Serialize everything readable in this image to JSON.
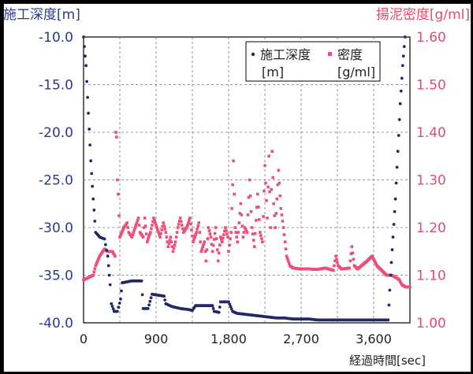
{
  "chart_data": {
    "type": "scatter",
    "left_axis": {
      "label": "施工深度[m]",
      "ticks": [
        "-10.0",
        "-15.0",
        "-20.0",
        "-25.0",
        "-30.0",
        "-35.0",
        "-40.0"
      ],
      "ylim": [
        -40.0,
        -10.0
      ],
      "color": "#2b3a8c"
    },
    "right_axis": {
      "label": "揚泥密度[g/ml]",
      "ticks": [
        "1.60",
        "1.50",
        "1.40",
        "1.30",
        "1.20",
        "1.10",
        "1.00"
      ],
      "ylim": [
        1.0,
        1.6
      ],
      "color": "#e34b6d"
    },
    "x_axis": {
      "label": "経過時間[sec]",
      "ticks": [
        "0",
        "900",
        "1,800",
        "2,700",
        "3,600"
      ],
      "tick_values": [
        0,
        900,
        1800,
        2700,
        3600
      ],
      "xlim": [
        0,
        4050
      ]
    },
    "grid": true,
    "legend_position": "top-right",
    "series": [
      {
        "name": "施工深度",
        "unit": "[m]",
        "axis": "left",
        "color": "#1f2a66",
        "points": [
          [
            0,
            -10
          ],
          [
            30,
            -13
          ],
          [
            60,
            -18
          ],
          [
            90,
            -23
          ],
          [
            120,
            -27
          ],
          [
            150,
            -30.5
          ],
          [
            200,
            -31
          ],
          [
            260,
            -31.2
          ],
          [
            300,
            -33
          ],
          [
            330,
            -36
          ],
          [
            345,
            -38
          ],
          [
            380,
            -38.8
          ],
          [
            420,
            -38.8
          ],
          [
            460,
            -37.5
          ],
          [
            480,
            -35.8
          ],
          [
            600,
            -35.6
          ],
          [
            720,
            -35.6
          ],
          [
            740,
            -38.5
          ],
          [
            800,
            -38.5
          ],
          [
            850,
            -37
          ],
          [
            1000,
            -37.2
          ],
          [
            1020,
            -38
          ],
          [
            1100,
            -38.3
          ],
          [
            1200,
            -38.5
          ],
          [
            1300,
            -38.6
          ],
          [
            1350,
            -38.7
          ],
          [
            1390,
            -38.2
          ],
          [
            1600,
            -38.2
          ],
          [
            1620,
            -38.8
          ],
          [
            1680,
            -38.9
          ],
          [
            1700,
            -37.8
          ],
          [
            1800,
            -37.8
          ],
          [
            1850,
            -38.8
          ],
          [
            1900,
            -39
          ],
          [
            2000,
            -39.1
          ],
          [
            2100,
            -39.2
          ],
          [
            2200,
            -39.3
          ],
          [
            2300,
            -39.4
          ],
          [
            2400,
            -39.5
          ],
          [
            2500,
            -39.5
          ],
          [
            2600,
            -39.6
          ],
          [
            2700,
            -39.6
          ],
          [
            2800,
            -39.6
          ],
          [
            2900,
            -39.7
          ],
          [
            3000,
            -39.7
          ],
          [
            3100,
            -39.7
          ],
          [
            3200,
            -39.7
          ],
          [
            3300,
            -39.7
          ],
          [
            3400,
            -39.7
          ],
          [
            3500,
            -39.7
          ],
          [
            3600,
            -39.7
          ],
          [
            3700,
            -39.7
          ],
          [
            3780,
            -39.7
          ],
          [
            3810,
            -35
          ],
          [
            3840,
            -31
          ],
          [
            3870,
            -27
          ],
          [
            3900,
            -22
          ],
          [
            3930,
            -17
          ],
          [
            3960,
            -13
          ],
          [
            3990,
            -10
          ]
        ]
      },
      {
        "name": "密度",
        "unit": "[g/ml]",
        "axis": "right",
        "color": "#ea5078",
        "points": [
          [
            0,
            1.09
          ],
          [
            60,
            1.095
          ],
          [
            120,
            1.1
          ],
          [
            150,
            1.12
          ],
          [
            200,
            1.14
          ],
          [
            260,
            1.155
          ],
          [
            300,
            1.15
          ],
          [
            360,
            1.15
          ],
          [
            390,
            1.14
          ],
          [
            400,
            1.4
          ],
          [
            410,
            1.39
          ],
          [
            420,
            1.3
          ],
          [
            430,
            1.27
          ],
          [
            450,
            1.18
          ],
          [
            500,
            1.2
          ],
          [
            540,
            1.21
          ],
          [
            560,
            1.19
          ],
          [
            600,
            1.18
          ],
          [
            640,
            1.2
          ],
          [
            680,
            1.22
          ],
          [
            700,
            1.19
          ],
          [
            740,
            1.18
          ],
          [
            760,
            1.22
          ],
          [
            790,
            1.17
          ],
          [
            830,
            1.19
          ],
          [
            870,
            1.22
          ],
          [
            910,
            1.2
          ],
          [
            950,
            1.18
          ],
          [
            990,
            1.21
          ],
          [
            1020,
            1.19
          ],
          [
            1050,
            1.16
          ],
          [
            1080,
            1.18
          ],
          [
            1110,
            1.15
          ],
          [
            1140,
            1.17
          ],
          [
            1170,
            1.2
          ],
          [
            1200,
            1.22
          ],
          [
            1240,
            1.19
          ],
          [
            1280,
            1.2
          ],
          [
            1320,
            1.22
          ],
          [
            1360,
            1.17
          ],
          [
            1400,
            1.19
          ],
          [
            1430,
            1.21
          ],
          [
            1460,
            1.15
          ],
          [
            1500,
            1.17
          ],
          [
            1520,
            1.13
          ],
          [
            1550,
            1.2
          ],
          [
            1580,
            1.18
          ],
          [
            1600,
            1.15
          ],
          [
            1640,
            1.2
          ],
          [
            1670,
            1.13
          ],
          [
            1700,
            1.18
          ],
          [
            1720,
            1.17
          ],
          [
            1760,
            1.2
          ],
          [
            1790,
            1.18
          ],
          [
            1800,
            1.15
          ],
          [
            1830,
            1.19
          ],
          [
            1860,
            1.34
          ],
          [
            1880,
            1.2
          ],
          [
            1910,
            1.17
          ],
          [
            1950,
            1.25
          ],
          [
            1980,
            1.18
          ],
          [
            2000,
            1.2
          ],
          [
            2030,
            1.19
          ],
          [
            2060,
            1.3
          ],
          [
            2090,
            1.2
          ],
          [
            2120,
            1.16
          ],
          [
            2160,
            1.27
          ],
          [
            2190,
            1.19
          ],
          [
            2220,
            1.17
          ],
          [
            2250,
            1.33
          ],
          [
            2280,
            1.22
          ],
          [
            2300,
            1.35
          ],
          [
            2320,
            1.2
          ],
          [
            2340,
            1.36
          ],
          [
            2360,
            1.25
          ],
          [
            2380,
            1.2
          ],
          [
            2420,
            1.32
          ],
          [
            2450,
            1.24
          ],
          [
            2480,
            1.2
          ],
          [
            2520,
            1.14
          ],
          [
            2560,
            1.12
          ],
          [
            2600,
            1.115
          ],
          [
            2700,
            1.113
          ],
          [
            2800,
            1.113
          ],
          [
            2900,
            1.112
          ],
          [
            3000,
            1.115
          ],
          [
            3100,
            1.11
          ],
          [
            3130,
            1.14
          ],
          [
            3160,
            1.12
          ],
          [
            3200,
            1.113
          ],
          [
            3300,
            1.115
          ],
          [
            3330,
            1.16
          ],
          [
            3360,
            1.12
          ],
          [
            3400,
            1.113
          ],
          [
            3450,
            1.12
          ],
          [
            3520,
            1.13
          ],
          [
            3580,
            1.14
          ],
          [
            3640,
            1.12
          ],
          [
            3700,
            1.11
          ],
          [
            3760,
            1.1
          ],
          [
            3820,
            1.1
          ],
          [
            3880,
            1.095
          ],
          [
            3920,
            1.09
          ],
          [
            3950,
            1.08
          ],
          [
            4000,
            1.075
          ],
          [
            4050,
            1.075
          ]
        ]
      }
    ]
  }
}
